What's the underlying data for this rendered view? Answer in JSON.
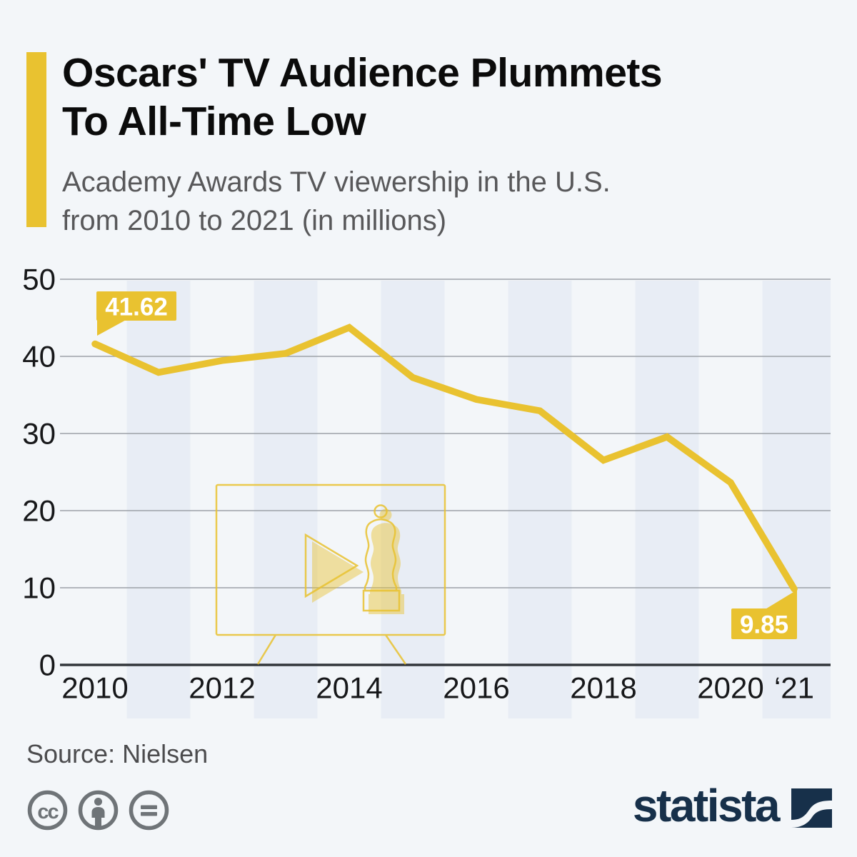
{
  "header": {
    "title_line1": "Oscars' TV Audience Plummets",
    "title_line2": "To All-Time Low",
    "subtitle_line1": "Academy Awards TV viewership in the U.S.",
    "subtitle_line2": "from 2010 to 2021 (in millions)"
  },
  "chart_data": {
    "type": "line",
    "title": "Academy Awards TV viewership in the U.S. from 2010 to 2021 (in millions)",
    "x": [
      2010,
      2011,
      2012,
      2013,
      2014,
      2015,
      2016,
      2017,
      2018,
      2019,
      2020,
      2021
    ],
    "values": [
      41.62,
      37.92,
      39.46,
      40.38,
      43.74,
      37.26,
      34.42,
      32.94,
      26.54,
      29.56,
      23.64,
      9.85
    ],
    "unit": "millions of viewers",
    "ylim": [
      0,
      50
    ],
    "y_ticks": [
      0,
      10,
      20,
      30,
      40,
      50
    ],
    "x_tick_years": [
      2010,
      2012,
      2014,
      2016,
      2018,
      2020,
      2021
    ],
    "x_tick_labels": [
      "2010",
      "2012",
      "2014",
      "2016",
      "2018",
      "2020",
      "‘21"
    ],
    "grid": "horizontal",
    "band_years": [
      2011,
      2013,
      2015,
      2017,
      2019,
      2021
    ],
    "annotations": [
      {
        "year": 2010,
        "value": 41.62,
        "label": "41.62"
      },
      {
        "year": 2021,
        "value": 9.85,
        "label": "9.85"
      }
    ],
    "legend": "none",
    "line_color": "#E9C230",
    "band_color": "#E8EDF5",
    "grid_color": "#9CA1A7",
    "axis_color": "#32363B",
    "callout_fill": "#E9C230",
    "callout_text_color": "#FFFFFF"
  },
  "footer": {
    "source": "Source: Nielsen",
    "brand_text": "statista",
    "license": [
      "cc",
      "by",
      "nd"
    ]
  },
  "colors": {
    "background": "#F3F6F9",
    "accent_yellow": "#E9C230",
    "title": "#0B0B0B",
    "subtitle": "#58585A",
    "source_text": "#4C4C4E",
    "license_icon": "#6F7478",
    "brand_navy": "#17304A"
  }
}
